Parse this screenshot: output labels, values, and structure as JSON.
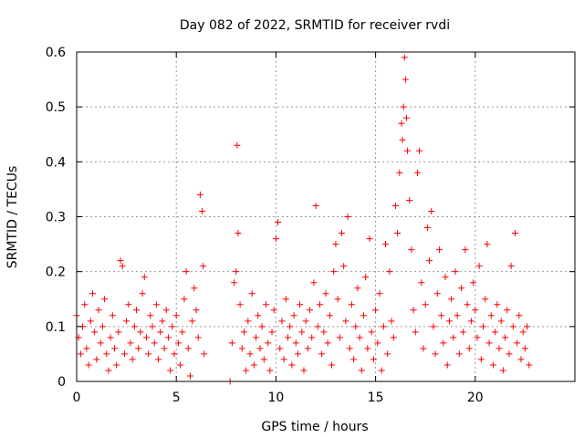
{
  "chart_data": {
    "type": "scatter",
    "title": "Day 082 of 2022, SRMTID for receiver rvdi",
    "xlabel": "GPS time / hours",
    "ylabel": "SRMTID / TECUs",
    "xlim": [
      0,
      25
    ],
    "ylim": [
      0,
      0.6
    ],
    "xticks": [
      "0",
      "5",
      "10",
      "15",
      "20"
    ],
    "xtick_values": [
      0,
      5,
      10,
      15,
      20
    ],
    "yticks": [
      "0",
      "0.1",
      "0.2",
      "0.3",
      "0.4",
      "0.5",
      "0.6"
    ],
    "ytick_values": [
      0,
      0.1,
      0.2,
      0.3,
      0.4,
      0.5,
      0.6
    ],
    "grid": true,
    "marker": "+",
    "color": "#ff0000",
    "series": [
      {
        "name": "SRMTID",
        "points": [
          [
            0.0,
            0.12
          ],
          [
            0.1,
            0.08
          ],
          [
            0.2,
            0.05
          ],
          [
            0.3,
            0.1
          ],
          [
            0.4,
            0.14
          ],
          [
            0.5,
            0.06
          ],
          [
            0.6,
            0.03
          ],
          [
            0.7,
            0.11
          ],
          [
            0.8,
            0.16
          ],
          [
            0.9,
            0.09
          ],
          [
            1.0,
            0.04
          ],
          [
            1.1,
            0.13
          ],
          [
            1.2,
            0.07
          ],
          [
            1.3,
            0.1
          ],
          [
            1.4,
            0.15
          ],
          [
            1.5,
            0.05
          ],
          [
            1.6,
            0.02
          ],
          [
            1.7,
            0.08
          ],
          [
            1.8,
            0.12
          ],
          [
            1.9,
            0.06
          ],
          [
            2.0,
            0.03
          ],
          [
            2.1,
            0.09
          ],
          [
            2.2,
            0.22
          ],
          [
            2.3,
            0.21
          ],
          [
            2.4,
            0.05
          ],
          [
            2.5,
            0.11
          ],
          [
            2.6,
            0.14
          ],
          [
            2.7,
            0.07
          ],
          [
            2.8,
            0.04
          ],
          [
            2.9,
            0.1
          ],
          [
            3.0,
            0.13
          ],
          [
            3.1,
            0.06
          ],
          [
            3.2,
            0.09
          ],
          [
            3.3,
            0.16
          ],
          [
            3.4,
            0.19
          ],
          [
            3.5,
            0.08
          ],
          [
            3.6,
            0.05
          ],
          [
            3.7,
            0.12
          ],
          [
            3.8,
            0.1
          ],
          [
            3.9,
            0.07
          ],
          [
            4.0,
            0.14
          ],
          [
            4.1,
            0.04
          ],
          [
            4.2,
            0.09
          ],
          [
            4.3,
            0.11
          ],
          [
            4.4,
            0.06
          ],
          [
            4.5,
            0.13
          ],
          [
            4.6,
            0.08
          ],
          [
            4.7,
            0.02
          ],
          [
            4.8,
            0.1
          ],
          [
            4.9,
            0.05
          ],
          [
            5.0,
            0.12
          ],
          [
            5.1,
            0.07
          ],
          [
            5.2,
            0.03
          ],
          [
            5.3,
            0.09
          ],
          [
            5.4,
            0.15
          ],
          [
            5.5,
            0.2
          ],
          [
            5.6,
            0.06
          ],
          [
            5.7,
            0.01
          ],
          [
            5.8,
            0.11
          ],
          [
            5.9,
            0.17
          ],
          [
            6.0,
            0.13
          ],
          [
            6.1,
            0.08
          ],
          [
            6.2,
            0.34
          ],
          [
            6.3,
            0.31
          ],
          [
            6.35,
            0.21
          ],
          [
            6.4,
            0.05
          ],
          [
            7.7,
            0.0
          ],
          [
            7.8,
            0.07
          ],
          [
            7.9,
            0.18
          ],
          [
            8.0,
            0.2
          ],
          [
            8.05,
            0.43
          ],
          [
            8.1,
            0.27
          ],
          [
            8.2,
            0.14
          ],
          [
            8.3,
            0.06
          ],
          [
            8.4,
            0.09
          ],
          [
            8.5,
            0.02
          ],
          [
            8.6,
            0.11
          ],
          [
            8.7,
            0.05
          ],
          [
            8.8,
            0.16
          ],
          [
            8.9,
            0.03
          ],
          [
            9.0,
            0.08
          ],
          [
            9.1,
            0.12
          ],
          [
            9.2,
            0.06
          ],
          [
            9.3,
            0.1
          ],
          [
            9.4,
            0.04
          ],
          [
            9.5,
            0.14
          ],
          [
            9.6,
            0.07
          ],
          [
            9.7,
            0.02
          ],
          [
            9.8,
            0.09
          ],
          [
            9.9,
            0.13
          ],
          [
            10.0,
            0.26
          ],
          [
            10.1,
            0.29
          ],
          [
            10.2,
            0.06
          ],
          [
            10.3,
            0.11
          ],
          [
            10.4,
            0.04
          ],
          [
            10.5,
            0.15
          ],
          [
            10.6,
            0.08
          ],
          [
            10.7,
            0.1
          ],
          [
            10.8,
            0.03
          ],
          [
            10.9,
            0.12
          ],
          [
            11.0,
            0.07
          ],
          [
            11.1,
            0.05
          ],
          [
            11.2,
            0.14
          ],
          [
            11.3,
            0.09
          ],
          [
            11.4,
            0.02
          ],
          [
            11.5,
            0.11
          ],
          [
            11.6,
            0.06
          ],
          [
            11.7,
            0.13
          ],
          [
            11.8,
            0.08
          ],
          [
            11.9,
            0.18
          ],
          [
            12.0,
            0.32
          ],
          [
            12.1,
            0.1
          ],
          [
            12.2,
            0.14
          ],
          [
            12.3,
            0.05
          ],
          [
            12.4,
            0.09
          ],
          [
            12.5,
            0.16
          ],
          [
            12.6,
            0.07
          ],
          [
            12.7,
            0.12
          ],
          [
            12.8,
            0.03
          ],
          [
            12.9,
            0.2
          ],
          [
            13.0,
            0.25
          ],
          [
            13.1,
            0.15
          ],
          [
            13.2,
            0.08
          ],
          [
            13.3,
            0.27
          ],
          [
            13.4,
            0.21
          ],
          [
            13.5,
            0.11
          ],
          [
            13.6,
            0.3
          ],
          [
            13.7,
            0.06
          ],
          [
            13.8,
            0.14
          ],
          [
            13.9,
            0.04
          ],
          [
            14.0,
            0.1
          ],
          [
            14.1,
            0.17
          ],
          [
            14.2,
            0.08
          ],
          [
            14.3,
            0.02
          ],
          [
            14.4,
            0.12
          ],
          [
            14.5,
            0.19
          ],
          [
            14.6,
            0.06
          ],
          [
            14.7,
            0.26
          ],
          [
            14.8,
            0.09
          ],
          [
            14.9,
            0.04
          ],
          [
            15.0,
            0.13
          ],
          [
            15.1,
            0.07
          ],
          [
            15.2,
            0.16
          ],
          [
            15.3,
            0.02
          ],
          [
            15.4,
            0.1
          ],
          [
            15.5,
            0.25
          ],
          [
            15.6,
            0.05
          ],
          [
            15.7,
            0.2
          ],
          [
            15.8,
            0.11
          ],
          [
            15.9,
            0.08
          ],
          [
            16.0,
            0.32
          ],
          [
            16.1,
            0.27
          ],
          [
            16.2,
            0.38
          ],
          [
            16.3,
            0.47
          ],
          [
            16.35,
            0.44
          ],
          [
            16.4,
            0.5
          ],
          [
            16.45,
            0.59
          ],
          [
            16.5,
            0.55
          ],
          [
            16.55,
            0.48
          ],
          [
            16.6,
            0.42
          ],
          [
            16.7,
            0.33
          ],
          [
            16.8,
            0.24
          ],
          [
            16.9,
            0.13
          ],
          [
            17.0,
            0.09
          ],
          [
            17.1,
            0.38
          ],
          [
            17.2,
            0.42
          ],
          [
            17.3,
            0.18
          ],
          [
            17.4,
            0.06
          ],
          [
            17.5,
            0.14
          ],
          [
            17.6,
            0.28
          ],
          [
            17.7,
            0.22
          ],
          [
            17.8,
            0.31
          ],
          [
            17.9,
            0.1
          ],
          [
            18.0,
            0.05
          ],
          [
            18.1,
            0.16
          ],
          [
            18.2,
            0.24
          ],
          [
            18.3,
            0.12
          ],
          [
            18.4,
            0.07
          ],
          [
            18.5,
            0.19
          ],
          [
            18.6,
            0.03
          ],
          [
            18.7,
            0.11
          ],
          [
            18.8,
            0.15
          ],
          [
            18.9,
            0.08
          ],
          [
            19.0,
            0.2
          ],
          [
            19.1,
            0.12
          ],
          [
            19.2,
            0.05
          ],
          [
            19.3,
            0.17
          ],
          [
            19.4,
            0.09
          ],
          [
            19.5,
            0.24
          ],
          [
            19.6,
            0.14
          ],
          [
            19.7,
            0.06
          ],
          [
            19.8,
            0.11
          ],
          [
            19.9,
            0.18
          ],
          [
            20.0,
            0.13
          ],
          [
            20.1,
            0.08
          ],
          [
            20.2,
            0.21
          ],
          [
            20.3,
            0.04
          ],
          [
            20.4,
            0.1
          ],
          [
            20.5,
            0.15
          ],
          [
            20.6,
            0.25
          ],
          [
            20.7,
            0.07
          ],
          [
            20.8,
            0.12
          ],
          [
            20.9,
            0.03
          ],
          [
            21.0,
            0.09
          ],
          [
            21.1,
            0.14
          ],
          [
            21.2,
            0.06
          ],
          [
            21.3,
            0.11
          ],
          [
            21.4,
            0.02
          ],
          [
            21.5,
            0.08
          ],
          [
            21.6,
            0.13
          ],
          [
            21.7,
            0.05
          ],
          [
            21.8,
            0.21
          ],
          [
            21.9,
            0.1
          ],
          [
            22.0,
            0.27
          ],
          [
            22.1,
            0.07
          ],
          [
            22.2,
            0.12
          ],
          [
            22.3,
            0.04
          ],
          [
            22.4,
            0.09
          ],
          [
            22.5,
            0.06
          ],
          [
            22.6,
            0.1
          ],
          [
            22.7,
            0.03
          ]
        ]
      }
    ]
  }
}
